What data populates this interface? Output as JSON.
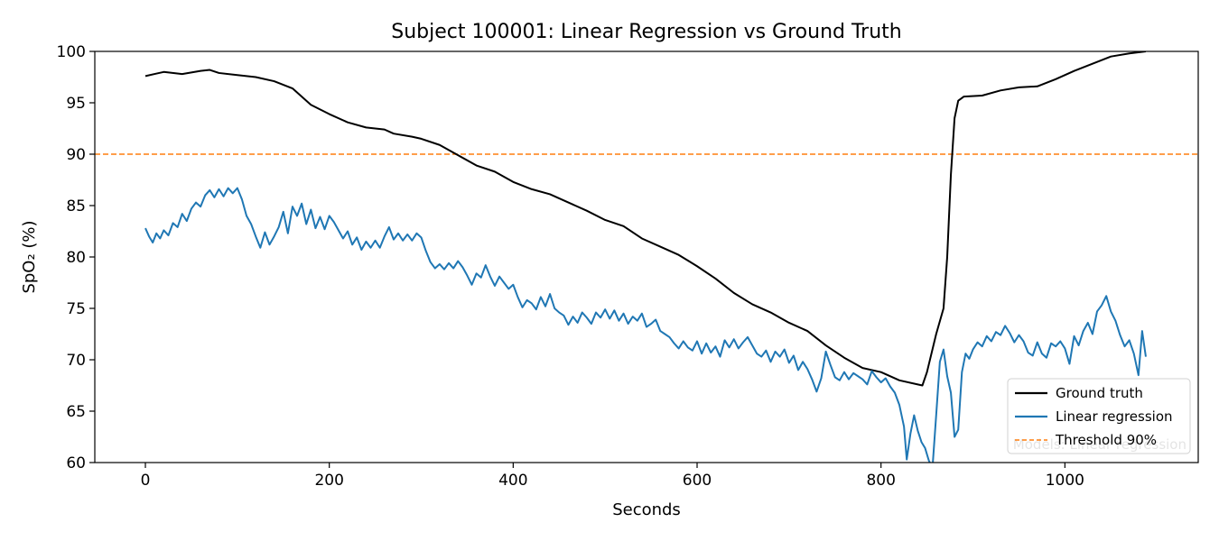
{
  "chart_data": {
    "type": "line",
    "title": "Subject 100001: Linear Regression vs Ground Truth",
    "xlabel": "Seconds",
    "ylabel": "SpO₂ (%)",
    "xlim": [
      -55,
      1145
    ],
    "ylim": [
      60,
      100
    ],
    "x_ticks": [
      0,
      200,
      400,
      600,
      800,
      1000
    ],
    "y_ticks": [
      60,
      65,
      70,
      75,
      80,
      85,
      90,
      95,
      100
    ],
    "grid": false,
    "legend_position": "lower-right",
    "annotation": "Models: Linear regression",
    "threshold": {
      "name": "Threshold 90%",
      "value": 90,
      "color": "#ff7f0e"
    },
    "series": [
      {
        "name": "Ground truth",
        "color": "#000000",
        "points": [
          [
            0,
            97.6
          ],
          [
            10,
            97.8
          ],
          [
            20,
            98.0
          ],
          [
            40,
            97.8
          ],
          [
            60,
            98.1
          ],
          [
            70,
            98.2
          ],
          [
            80,
            97.9
          ],
          [
            100,
            97.7
          ],
          [
            120,
            97.5
          ],
          [
            140,
            97.1
          ],
          [
            160,
            96.4
          ],
          [
            180,
            94.8
          ],
          [
            200,
            93.9
          ],
          [
            220,
            93.1
          ],
          [
            240,
            92.6
          ],
          [
            260,
            92.4
          ],
          [
            270,
            92.0
          ],
          [
            290,
            91.7
          ],
          [
            300,
            91.5
          ],
          [
            320,
            90.9
          ],
          [
            340,
            89.9
          ],
          [
            360,
            88.9
          ],
          [
            380,
            88.3
          ],
          [
            400,
            87.3
          ],
          [
            420,
            86.6
          ],
          [
            440,
            86.1
          ],
          [
            460,
            85.3
          ],
          [
            480,
            84.5
          ],
          [
            500,
            83.6
          ],
          [
            520,
            83.0
          ],
          [
            540,
            81.8
          ],
          [
            560,
            81.0
          ],
          [
            580,
            80.2
          ],
          [
            600,
            79.1
          ],
          [
            620,
            77.9
          ],
          [
            640,
            76.5
          ],
          [
            660,
            75.4
          ],
          [
            680,
            74.6
          ],
          [
            700,
            73.6
          ],
          [
            720,
            72.8
          ],
          [
            740,
            71.4
          ],
          [
            760,
            70.2
          ],
          [
            780,
            69.2
          ],
          [
            800,
            68.8
          ],
          [
            820,
            68.0
          ],
          [
            840,
            67.6
          ],
          [
            845,
            67.5
          ],
          [
            850,
            68.8
          ],
          [
            860,
            72.5
          ],
          [
            868,
            75.0
          ],
          [
            872,
            80.0
          ],
          [
            876,
            88.0
          ],
          [
            880,
            93.5
          ],
          [
            884,
            95.2
          ],
          [
            890,
            95.6
          ],
          [
            910,
            95.7
          ],
          [
            930,
            96.2
          ],
          [
            950,
            96.5
          ],
          [
            970,
            96.6
          ],
          [
            990,
            97.3
          ],
          [
            1010,
            98.1
          ],
          [
            1030,
            98.8
          ],
          [
            1050,
            99.5
          ],
          [
            1070,
            99.8
          ],
          [
            1088,
            100.0
          ]
        ]
      },
      {
        "name": "Linear regression",
        "color": "#1f77b4",
        "points": [
          [
            0,
            82.8
          ],
          [
            4,
            82.0
          ],
          [
            8,
            81.4
          ],
          [
            12,
            82.3
          ],
          [
            16,
            81.8
          ],
          [
            20,
            82.6
          ],
          [
            25,
            82.1
          ],
          [
            30,
            83.3
          ],
          [
            35,
            82.9
          ],
          [
            40,
            84.2
          ],
          [
            45,
            83.5
          ],
          [
            50,
            84.7
          ],
          [
            55,
            85.3
          ],
          [
            60,
            84.9
          ],
          [
            65,
            86.0
          ],
          [
            70,
            86.5
          ],
          [
            75,
            85.8
          ],
          [
            80,
            86.6
          ],
          [
            85,
            85.9
          ],
          [
            90,
            86.7
          ],
          [
            95,
            86.2
          ],
          [
            100,
            86.7
          ],
          [
            105,
            85.6
          ],
          [
            110,
            84.0
          ],
          [
            115,
            83.2
          ],
          [
            120,
            82.0
          ],
          [
            125,
            80.9
          ],
          [
            130,
            82.4
          ],
          [
            135,
            81.2
          ],
          [
            140,
            82.0
          ],
          [
            145,
            82.9
          ],
          [
            150,
            84.4
          ],
          [
            155,
            82.3
          ],
          [
            160,
            84.9
          ],
          [
            165,
            84.0
          ],
          [
            170,
            85.2
          ],
          [
            175,
            83.2
          ],
          [
            180,
            84.6
          ],
          [
            185,
            82.8
          ],
          [
            190,
            83.9
          ],
          [
            195,
            82.7
          ],
          [
            200,
            84.0
          ],
          [
            205,
            83.4
          ],
          [
            210,
            82.6
          ],
          [
            215,
            81.8
          ],
          [
            220,
            82.5
          ],
          [
            225,
            81.2
          ],
          [
            230,
            81.9
          ],
          [
            235,
            80.7
          ],
          [
            240,
            81.5
          ],
          [
            245,
            80.9
          ],
          [
            250,
            81.6
          ],
          [
            255,
            80.9
          ],
          [
            260,
            82.0
          ],
          [
            265,
            82.9
          ],
          [
            270,
            81.7
          ],
          [
            275,
            82.3
          ],
          [
            280,
            81.6
          ],
          [
            285,
            82.2
          ],
          [
            290,
            81.6
          ],
          [
            295,
            82.3
          ],
          [
            300,
            81.9
          ],
          [
            305,
            80.6
          ],
          [
            310,
            79.5
          ],
          [
            315,
            78.9
          ],
          [
            320,
            79.3
          ],
          [
            325,
            78.8
          ],
          [
            330,
            79.4
          ],
          [
            335,
            78.9
          ],
          [
            340,
            79.6
          ],
          [
            345,
            79.0
          ],
          [
            350,
            78.2
          ],
          [
            355,
            77.3
          ],
          [
            360,
            78.4
          ],
          [
            365,
            78.0
          ],
          [
            370,
            79.2
          ],
          [
            375,
            78.1
          ],
          [
            380,
            77.2
          ],
          [
            385,
            78.1
          ],
          [
            390,
            77.5
          ],
          [
            395,
            76.9
          ],
          [
            400,
            77.3
          ],
          [
            405,
            76.1
          ],
          [
            410,
            75.1
          ],
          [
            415,
            75.8
          ],
          [
            420,
            75.5
          ],
          [
            425,
            74.9
          ],
          [
            430,
            76.1
          ],
          [
            435,
            75.2
          ],
          [
            440,
            76.4
          ],
          [
            445,
            75.0
          ],
          [
            450,
            74.6
          ],
          [
            455,
            74.3
          ],
          [
            460,
            73.4
          ],
          [
            465,
            74.2
          ],
          [
            470,
            73.6
          ],
          [
            475,
            74.6
          ],
          [
            480,
            74.1
          ],
          [
            485,
            73.5
          ],
          [
            490,
            74.6
          ],
          [
            495,
            74.1
          ],
          [
            500,
            74.9
          ],
          [
            505,
            74.0
          ],
          [
            510,
            74.8
          ],
          [
            515,
            73.8
          ],
          [
            520,
            74.5
          ],
          [
            525,
            73.5
          ],
          [
            530,
            74.2
          ],
          [
            535,
            73.8
          ],
          [
            540,
            74.5
          ],
          [
            545,
            73.2
          ],
          [
            550,
            73.5
          ],
          [
            555,
            73.9
          ],
          [
            560,
            72.8
          ],
          [
            565,
            72.5
          ],
          [
            570,
            72.2
          ],
          [
            575,
            71.6
          ],
          [
            580,
            71.1
          ],
          [
            585,
            71.8
          ],
          [
            590,
            71.2
          ],
          [
            595,
            70.9
          ],
          [
            600,
            71.8
          ],
          [
            605,
            70.6
          ],
          [
            610,
            71.6
          ],
          [
            615,
            70.7
          ],
          [
            620,
            71.3
          ],
          [
            625,
            70.3
          ],
          [
            630,
            71.9
          ],
          [
            635,
            71.2
          ],
          [
            640,
            72.0
          ],
          [
            645,
            71.1
          ],
          [
            650,
            71.7
          ],
          [
            655,
            72.2
          ],
          [
            660,
            71.4
          ],
          [
            665,
            70.6
          ],
          [
            670,
            70.3
          ],
          [
            675,
            70.9
          ],
          [
            680,
            69.8
          ],
          [
            685,
            70.8
          ],
          [
            690,
            70.3
          ],
          [
            695,
            71.0
          ],
          [
            700,
            69.7
          ],
          [
            705,
            70.4
          ],
          [
            710,
            69.0
          ],
          [
            715,
            69.8
          ],
          [
            720,
            69.1
          ],
          [
            725,
            68.1
          ],
          [
            730,
            66.9
          ],
          [
            735,
            68.2
          ],
          [
            740,
            70.8
          ],
          [
            745,
            69.5
          ],
          [
            750,
            68.3
          ],
          [
            755,
            68.0
          ],
          [
            760,
            68.8
          ],
          [
            765,
            68.1
          ],
          [
            770,
            68.7
          ],
          [
            775,
            68.4
          ],
          [
            780,
            68.1
          ],
          [
            785,
            67.6
          ],
          [
            790,
            68.9
          ],
          [
            795,
            68.3
          ],
          [
            800,
            67.8
          ],
          [
            805,
            68.2
          ],
          [
            810,
            67.4
          ],
          [
            815,
            66.8
          ],
          [
            820,
            65.6
          ],
          [
            825,
            63.5
          ],
          [
            828,
            60.3
          ],
          [
            832,
            62.8
          ],
          [
            836,
            64.6
          ],
          [
            840,
            63.1
          ],
          [
            844,
            62.0
          ],
          [
            848,
            61.4
          ],
          [
            852,
            60.2
          ],
          [
            856,
            59.5
          ],
          [
            860,
            64.6
          ],
          [
            864,
            69.8
          ],
          [
            868,
            71.0
          ],
          [
            872,
            68.4
          ],
          [
            876,
            66.8
          ],
          [
            880,
            62.5
          ],
          [
            884,
            63.2
          ],
          [
            888,
            68.8
          ],
          [
            892,
            70.6
          ],
          [
            896,
            70.1
          ],
          [
            900,
            71.0
          ],
          [
            905,
            71.7
          ],
          [
            910,
            71.3
          ],
          [
            915,
            72.3
          ],
          [
            920,
            71.8
          ],
          [
            925,
            72.7
          ],
          [
            930,
            72.4
          ],
          [
            935,
            73.3
          ],
          [
            940,
            72.6
          ],
          [
            945,
            71.7
          ],
          [
            950,
            72.4
          ],
          [
            955,
            71.8
          ],
          [
            960,
            70.7
          ],
          [
            965,
            70.4
          ],
          [
            970,
            71.7
          ],
          [
            975,
            70.6
          ],
          [
            980,
            70.2
          ],
          [
            985,
            71.6
          ],
          [
            990,
            71.3
          ],
          [
            995,
            71.8
          ],
          [
            1000,
            71.1
          ],
          [
            1005,
            69.6
          ],
          [
            1010,
            72.3
          ],
          [
            1015,
            71.4
          ],
          [
            1020,
            72.8
          ],
          [
            1025,
            73.6
          ],
          [
            1030,
            72.5
          ],
          [
            1035,
            74.7
          ],
          [
            1040,
            75.3
          ],
          [
            1045,
            76.2
          ],
          [
            1050,
            74.7
          ],
          [
            1055,
            73.8
          ],
          [
            1060,
            72.4
          ],
          [
            1065,
            71.3
          ],
          [
            1070,
            71.9
          ],
          [
            1075,
            70.6
          ],
          [
            1080,
            68.5
          ],
          [
            1084,
            72.8
          ],
          [
            1088,
            70.3
          ]
        ]
      }
    ]
  }
}
